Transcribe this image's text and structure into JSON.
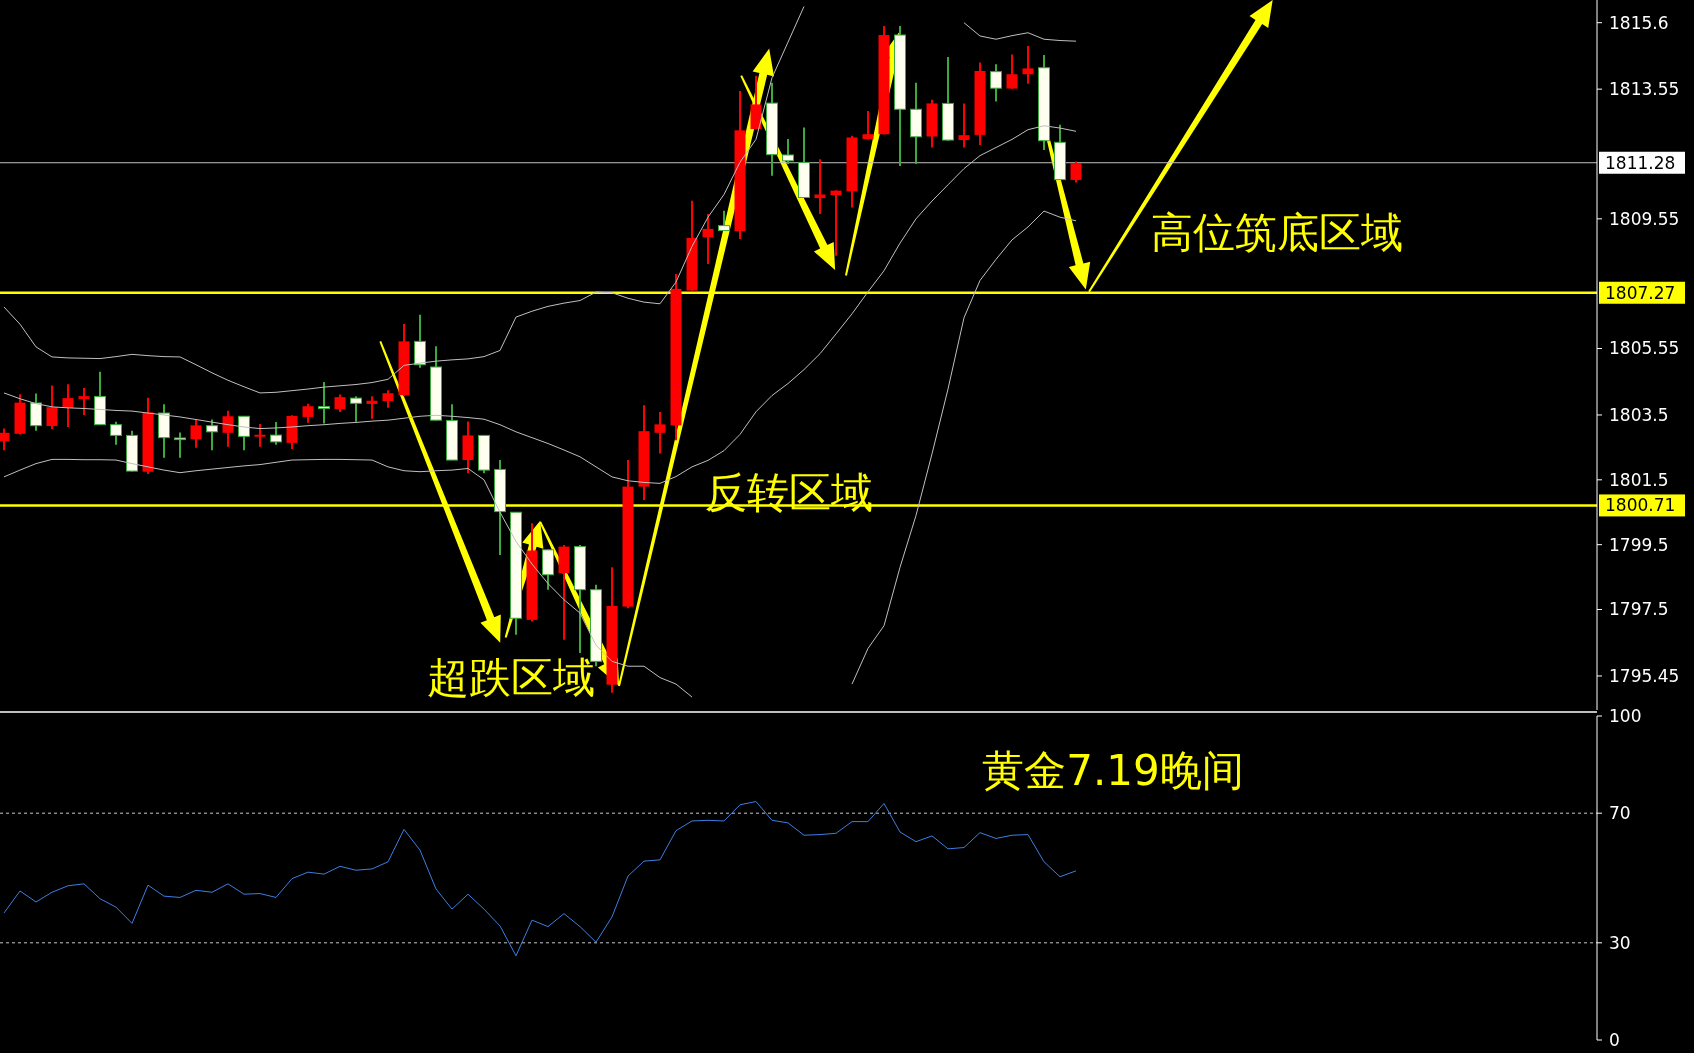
{
  "chart_data": [
    {
      "type": "candlestick",
      "categories": [
        null,
        null,
        null,
        null,
        null,
        null,
        null,
        null,
        null,
        null,
        null,
        null,
        null,
        null,
        null,
        null,
        null,
        null,
        null,
        null,
        null,
        null,
        null,
        null,
        null,
        null,
        null,
        null,
        null,
        null,
        null,
        null,
        null,
        null,
        null,
        null,
        null,
        null,
        null,
        null,
        null,
        null,
        null,
        null,
        null,
        null,
        null,
        null,
        null,
        null,
        null,
        null,
        null,
        null,
        null,
        null,
        null,
        null,
        null,
        null,
        null,
        null,
        null,
        null,
        null,
        null,
        null,
        null
      ],
      "ohlc": [
        [
          1802.69,
          1803.08,
          1802.41,
          1802.95
        ],
        [
          1802.92,
          1804.14,
          1802.9,
          1803.88
        ],
        [
          1803.87,
          1804.16,
          1803.01,
          1803.17
        ],
        [
          1803.16,
          1804.41,
          1803.07,
          1803.74
        ],
        [
          1803.72,
          1804.45,
          1803.13,
          1804.02
        ],
        [
          1803.99,
          1804.33,
          1803.5,
          1804.08
        ],
        [
          1804.07,
          1804.83,
          1803.19,
          1803.2
        ],
        [
          1803.2,
          1803.29,
          1802.58,
          1802.87
        ],
        [
          1802.87,
          1803.01,
          1801.76,
          1801.77
        ],
        [
          1801.75,
          1804.03,
          1801.68,
          1803.58
        ],
        [
          1803.56,
          1803.83,
          1802.18,
          1802.8
        ],
        [
          1802.79,
          1802.96,
          1802.18,
          1802.74
        ],
        [
          1802.75,
          1803.36,
          1802.49,
          1803.18
        ],
        [
          1803.17,
          1803.36,
          1802.41,
          1802.98
        ],
        [
          1802.95,
          1803.63,
          1802.52,
          1803.46
        ],
        [
          1803.46,
          1803.47,
          1802.41,
          1802.84
        ],
        [
          1802.83,
          1803.22,
          1802.52,
          1802.89
        ],
        [
          1802.88,
          1803.28,
          1802.58,
          1802.67
        ],
        [
          1802.64,
          1803.49,
          1802.45,
          1803.47
        ],
        [
          1803.44,
          1803.85,
          1803.26,
          1803.77
        ],
        [
          1803.76,
          1804.52,
          1803.24,
          1803.7
        ],
        [
          1803.68,
          1804.13,
          1803.59,
          1804.05
        ],
        [
          1804.02,
          1804.08,
          1803.29,
          1803.86
        ],
        [
          1803.84,
          1804.08,
          1803.38,
          1803.94
        ],
        [
          1803.93,
          1804.26,
          1803.72,
          1804.17
        ],
        [
          1804.11,
          1806.31,
          1804.08,
          1805.77
        ],
        [
          1805.77,
          1806.59,
          1804.96,
          1805.05
        ],
        [
          1804.98,
          1805.62,
          1803.33,
          1803.34
        ],
        [
          1803.33,
          1803.83,
          1802.1,
          1802.11
        ],
        [
          1802.11,
          1803.3,
          1801.7,
          1802.87
        ],
        [
          1802.87,
          1802.88,
          1801.7,
          1801.8
        ],
        [
          1801.82,
          1802.11,
          1799.18,
          1800.52
        ],
        [
          1800.5,
          1800.51,
          1796.72,
          1797.23
        ],
        [
          1797.18,
          1800.16,
          1797.13,
          1799.32
        ],
        [
          1799.34,
          1799.35,
          1798.11,
          1798.57
        ],
        [
          1798.62,
          1799.49,
          1796.57,
          1799.44
        ],
        [
          1799.44,
          1799.49,
          1796.16,
          1798.11
        ],
        [
          1798.11,
          1798.26,
          1795.75,
          1795.9
        ],
        [
          1795.18,
          1798.8,
          1794.93,
          1797.61
        ],
        [
          1797.59,
          1802.11,
          1797.54,
          1801.29
        ],
        [
          1801.29,
          1803.8,
          1800.88,
          1803.0
        ],
        [
          1802.95,
          1803.59,
          1802.31,
          1803.21
        ],
        [
          1803.18,
          1807.85,
          1802.72,
          1807.39
        ],
        [
          1807.34,
          1810.11,
          1807.33,
          1808.96
        ],
        [
          1808.98,
          1809.7,
          1808.16,
          1809.24
        ],
        [
          1809.34,
          1809.8,
          1809.18,
          1809.19
        ],
        [
          1809.17,
          1813.49,
          1808.93,
          1812.28
        ],
        [
          1812.32,
          1813.96,
          1812.31,
          1813.08
        ],
        [
          1813.12,
          1813.75,
          1810.88,
          1811.53
        ],
        [
          1811.52,
          1812.01,
          1811.24,
          1811.34
        ],
        [
          1811.29,
          1812.37,
          1810.2,
          1810.21
        ],
        [
          1810.19,
          1811.39,
          1809.7,
          1810.3
        ],
        [
          1810.28,
          1810.43,
          1808.41,
          1810.42
        ],
        [
          1810.4,
          1812.11,
          1809.9,
          1812.06
        ],
        [
          1812.01,
          1812.88,
          1812.0,
          1812.16
        ],
        [
          1812.16,
          1815.5,
          1812.15,
          1815.22
        ],
        [
          1815.22,
          1815.5,
          1811.18,
          1812.93
        ],
        [
          1812.93,
          1813.75,
          1811.24,
          1812.08
        ],
        [
          1812.09,
          1813.22,
          1811.75,
          1813.11
        ],
        [
          1813.11,
          1814.54,
          1811.96,
          1811.98
        ],
        [
          1811.98,
          1813.11,
          1811.75,
          1812.13
        ],
        [
          1812.14,
          1814.37,
          1811.83,
          1814.11
        ],
        [
          1814.09,
          1814.32,
          1813.17,
          1813.58
        ],
        [
          1813.57,
          1814.62,
          1813.56,
          1814.01
        ],
        [
          1814.01,
          1814.88,
          1813.72,
          1814.19
        ],
        [
          1814.21,
          1814.6,
          1811.67,
          1811.96
        ],
        [
          1811.91,
          1812.45,
          1810.75,
          1810.76
        ],
        [
          1810.75,
          1811.32,
          1810.67,
          1811.27
        ]
      ],
      "series": [
        {
          "type": "line",
          "color": "#bfbfbf",
          "values": [
            1806.83,
            1806.3,
            1805.6,
            1805.29,
            1805.26,
            1805.25,
            1805.24,
            1805.3,
            1805.37,
            1805.33,
            1805.3,
            1805.29,
            1805.05,
            1804.8,
            1804.57,
            1804.37,
            1804.18,
            1804.2,
            1804.25,
            1804.3,
            1804.36,
            1804.4,
            1804.44,
            1804.5,
            1804.6,
            1805.03,
            1805.1,
            1805.16,
            1805.2,
            1805.23,
            1805.3,
            1805.49,
            1806.52,
            1806.7,
            1806.85,
            1806.95,
            1807.03,
            1807.29,
            1807.27,
            1807.1,
            1806.98,
            1806.93,
            1807.6,
            1808.7,
            1809.6,
            1810.3,
            1811.3,
            1812.0,
            1813.9,
            1815.0,
            1816.1,
            null,
            null,
            null,
            null,
            null,
            null,
            null,
            null,
            null,
            1815.6,
            1815.19,
            1815.09,
            1815.2,
            1815.29,
            1815.09,
            1815.05,
            1815.03
          ]
        },
        {
          "type": "line",
          "color": "#bfbfbf",
          "values": [
            1804.18,
            1804.0,
            1803.85,
            1803.75,
            1803.72,
            1803.7,
            1803.67,
            1803.64,
            1803.62,
            1803.56,
            1803.5,
            1803.44,
            1803.36,
            1803.28,
            1803.2,
            1803.13,
            1803.08,
            1803.1,
            1803.13,
            1803.17,
            1803.2,
            1803.24,
            1803.27,
            1803.31,
            1803.34,
            1803.4,
            1803.46,
            1803.49,
            1803.46,
            1803.42,
            1803.37,
            1803.2,
            1802.98,
            1802.8,
            1802.62,
            1802.42,
            1802.21,
            1801.9,
            1801.59,
            1801.47,
            1801.42,
            1801.39,
            1801.6,
            1801.9,
            1802.1,
            1802.4,
            1802.9,
            1803.6,
            1804.1,
            1804.47,
            1804.9,
            1805.39,
            1806.0,
            1806.62,
            1807.3,
            1807.95,
            1808.8,
            1809.55,
            1810.1,
            1810.6,
            1811.1,
            1811.5,
            1811.75,
            1812.0,
            1812.3,
            1812.42,
            1812.35,
            1812.25
          ]
        },
        {
          "type": "line",
          "color": "#bfbfbf",
          "values": [
            1801.59,
            1801.8,
            1802.0,
            1802.13,
            1802.13,
            1802.12,
            1802.12,
            1802.11,
            1802.0,
            1801.9,
            1801.8,
            1801.72,
            1801.78,
            1801.83,
            1801.88,
            1801.93,
            1801.97,
            1802.04,
            1802.11,
            1802.12,
            1802.13,
            1802.13,
            1802.12,
            1802.11,
            1801.9,
            1801.78,
            1801.75,
            1801.78,
            1801.8,
            1801.85,
            1801.5,
            1800.5,
            1799.6,
            1798.9,
            1798.3,
            1797.8,
            1797.39,
            1796.4,
            1795.9,
            1795.75,
            1795.75,
            1795.4,
            1795.2,
            1794.8,
            null,
            null,
            null,
            null,
            null,
            null,
            null,
            null,
            null,
            1795.2,
            1796.3,
            1797.0,
            1798.8,
            1800.4,
            1802.3,
            1804.3,
            1806.5,
            1807.65,
            1808.3,
            1808.9,
            1809.3,
            1809.79,
            1809.6,
            1809.49
          ]
        }
      ],
      "ylim": [
        1794.4,
        1816.3
      ],
      "yticks": [
        1795.45,
        1797.5,
        1799.5,
        1801.5,
        1803.5,
        1805.55,
        1809.55,
        1813.55,
        1815.6
      ],
      "tick_labels": "y",
      "ref_lines": [
        {
          "axis": "y",
          "value": 1811.28,
          "label": "1811.28",
          "color": "#c0c0c0"
        },
        {
          "axis": "y",
          "value": 1807.27,
          "label": "1807.27",
          "color": "#ffff00"
        },
        {
          "axis": "y",
          "value": 1800.71,
          "label": "1800.71",
          "color": "#ffff00"
        }
      ],
      "annotations": [
        "高位筑底区域",
        "反转区域",
        "超跌区域"
      ]
    },
    {
      "type": "line",
      "title": "黄金7.19晚间",
      "categories": [
        null,
        null,
        null,
        null,
        null,
        null,
        null,
        null,
        null,
        null,
        null,
        null,
        null,
        null,
        null,
        null,
        null,
        null,
        null,
        null,
        null,
        null,
        null,
        null,
        null,
        null,
        null,
        null,
        null,
        null,
        null,
        null,
        null,
        null,
        null,
        null,
        null,
        null,
        null,
        null,
        null,
        null,
        null,
        null,
        null,
        null,
        null,
        null,
        null,
        null,
        null,
        null,
        null,
        null,
        null,
        null,
        null,
        null,
        null,
        null,
        null,
        null,
        null,
        null,
        null,
        null,
        null,
        null
      ],
      "series": [
        {
          "color": "#3d7ee0",
          "values": [
            39.2,
            46.0,
            42.6,
            45.6,
            47.6,
            48.2,
            43.6,
            41.0,
            36.0,
            47.8,
            44.4,
            44.0,
            46.2,
            45.6,
            48.2,
            45.0,
            45.2,
            44.0,
            49.8,
            51.8,
            51.2,
            53.6,
            52.4,
            52.8,
            55.0,
            65.0,
            58.6,
            46.6,
            40.4,
            45.0,
            40.4,
            35.2,
            26.0,
            37.0,
            35.0,
            39.0,
            35.0,
            30.2,
            38.0,
            50.6,
            55.2,
            55.6,
            64.6,
            67.6,
            67.8,
            67.6,
            72.6,
            73.6,
            67.8,
            67.0,
            63.2,
            63.4,
            63.8,
            67.4,
            67.4,
            73.0,
            64.2,
            61.2,
            63.0,
            59.0,
            59.4,
            64.0,
            62.2,
            63.2,
            63.4,
            55.0,
            50.4,
            52.2
          ]
        }
      ],
      "ylim": [
        0,
        100
      ],
      "yticks": [
        100,
        70,
        30,
        0
      ],
      "tick_labels": "y",
      "ref_lines": [
        {
          "axis": "y",
          "value": 70,
          "line_style": "dashed",
          "color": "#c8c8c8"
        },
        {
          "axis": "y",
          "value": 30,
          "line_style": "dashed",
          "color": "#c8c8c8"
        }
      ]
    }
  ]
}
